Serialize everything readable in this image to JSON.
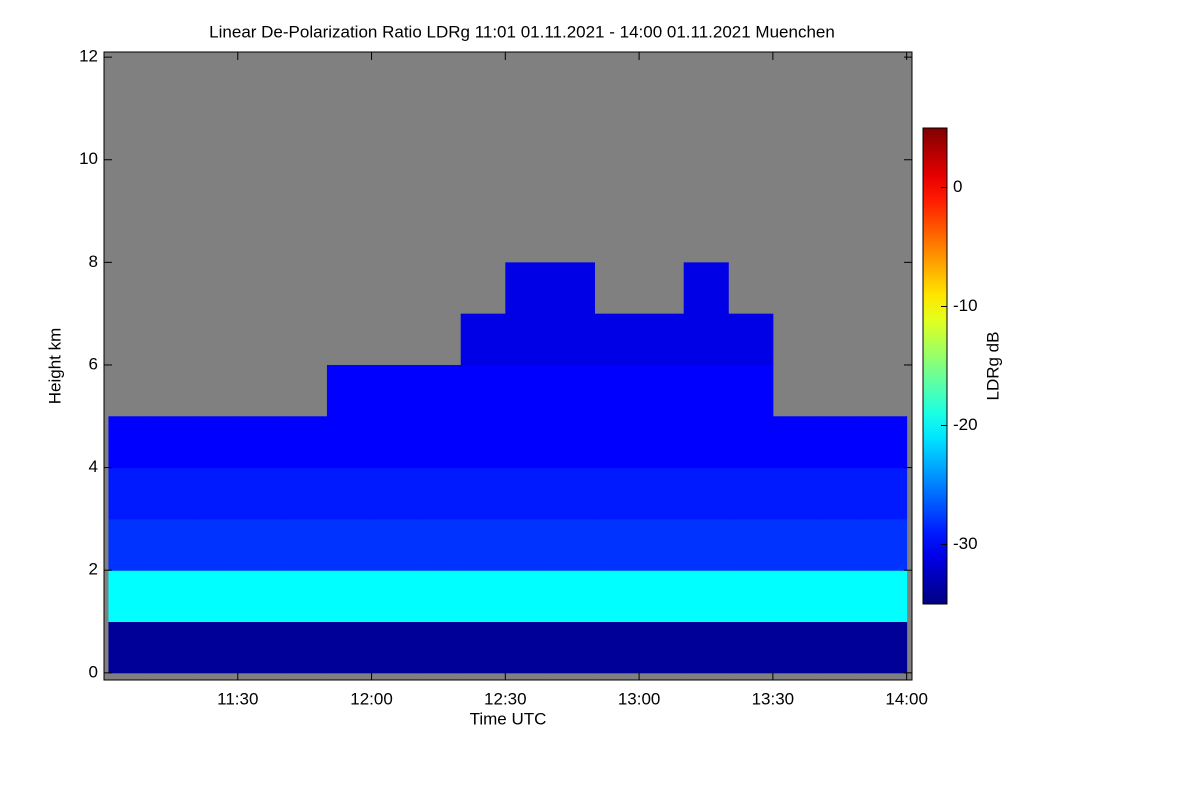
{
  "chart_data": {
    "type": "heatmap",
    "title": "Linear De-Polarization Ratio LDRg   11:01 01.11.2021 - 14:00 01.11.2021 Muenchen",
    "x_label": "Time UTC",
    "y_label": "Height km",
    "colorbar_label": "LDRg dB",
    "colormap": "jet",
    "missing_color": "#808080",
    "x_bins": [
      11.0167,
      11.1667,
      11.3333,
      11.5,
      11.6667,
      11.8333,
      12,
      12.1667,
      12.3333,
      12.5,
      12.6667,
      12.8333,
      13,
      13.1667,
      13.3333,
      13.5,
      13.6667,
      13.8333,
      14
    ],
    "y_bins": [
      0,
      1,
      2,
      3,
      4,
      5,
      6,
      7,
      8,
      9,
      10,
      11,
      12
    ],
    "z": [
      [
        -34,
        -34,
        -34,
        -34,
        -34,
        -34,
        -34,
        -34,
        -34,
        -34,
        -34,
        -34,
        -34,
        -34,
        -34,
        -34,
        -34,
        -34
      ],
      [
        -20,
        -20,
        -20,
        -20,
        -20,
        -20,
        -20,
        -20,
        -20,
        -20,
        -20,
        -20,
        -20,
        -20,
        -20,
        -20,
        -20,
        -20
      ],
      [
        -28,
        -28,
        -28,
        -28,
        -28,
        -28,
        -28,
        -28,
        -28,
        -28,
        -28,
        -28,
        -28,
        -28,
        -28,
        -28,
        -28,
        -28
      ],
      [
        -29,
        -29,
        -29,
        -29,
        -29,
        -29,
        -29,
        -29,
        -29,
        -29,
        -29,
        -29,
        -29,
        -29,
        -29,
        -29,
        -29,
        -29
      ],
      [
        -30,
        -30,
        -30,
        -30,
        -30,
        -30,
        -30,
        -30,
        -30,
        -30,
        -30,
        -30,
        -30,
        -30,
        -30,
        -30,
        -30,
        -30
      ],
      [
        null,
        null,
        null,
        null,
        null,
        -30,
        -30,
        -30,
        -30,
        -30,
        -30,
        -30,
        -30,
        -30,
        -30,
        null,
        null,
        null
      ],
      [
        null,
        null,
        null,
        null,
        null,
        null,
        null,
        null,
        -31,
        -31,
        -31,
        -31,
        -31,
        -31,
        -31,
        null,
        null,
        null
      ],
      [
        null,
        null,
        null,
        null,
        null,
        null,
        null,
        null,
        null,
        -31,
        -31,
        null,
        null,
        -31,
        null,
        null,
        null,
        null
      ],
      [
        null,
        null,
        null,
        null,
        null,
        null,
        null,
        null,
        null,
        null,
        null,
        null,
        null,
        null,
        null,
        null,
        null,
        null
      ],
      [
        null,
        null,
        null,
        null,
        null,
        null,
        null,
        null,
        null,
        null,
        null,
        null,
        null,
        null,
        null,
        null,
        null,
        null
      ],
      [
        null,
        null,
        null,
        null,
        null,
        null,
        null,
        null,
        null,
        null,
        null,
        null,
        null,
        null,
        null,
        null,
        null,
        null
      ],
      [
        null,
        null,
        null,
        null,
        null,
        null,
        null,
        null,
        null,
        null,
        null,
        null,
        null,
        null,
        null,
        null,
        null,
        null
      ]
    ],
    "xlim": [
      11.0,
      14.02
    ],
    "xticks": [
      {
        "value": 11.5,
        "label": "11:30"
      },
      {
        "value": 12,
        "label": "12:00"
      },
      {
        "value": 12.5,
        "label": "12:30"
      },
      {
        "value": 13,
        "label": "13:00"
      },
      {
        "value": 13.5,
        "label": "13:30"
      },
      {
        "value": 14,
        "label": "14:00"
      }
    ],
    "ylim": [
      -0.14,
      12.1
    ],
    "yticks": [
      0,
      2,
      4,
      6,
      8,
      10,
      12
    ],
    "zlim": [
      -35,
      5
    ],
    "zticks": [
      0,
      -10,
      -20,
      -30
    ]
  }
}
